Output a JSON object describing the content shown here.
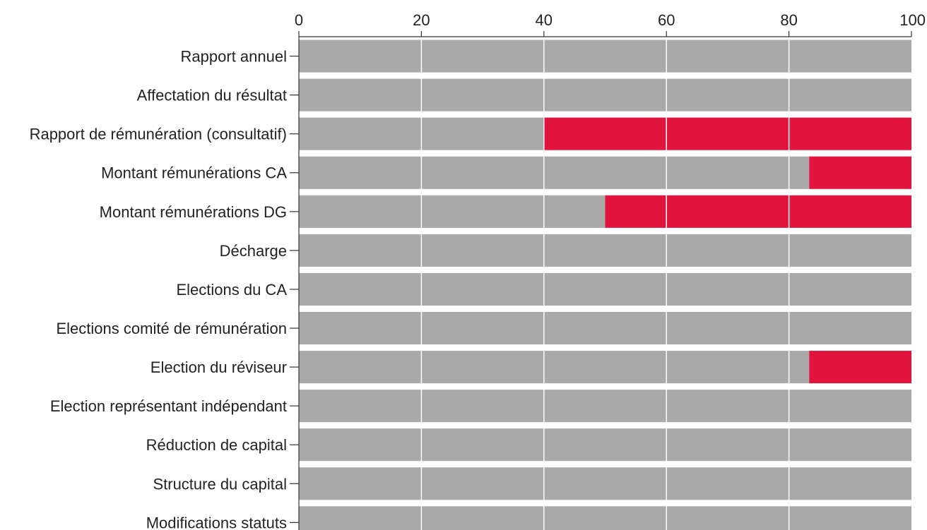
{
  "chart_data": {
    "type": "bar",
    "orientation": "horizontal",
    "stacked": true,
    "title": "",
    "xlabel": "",
    "ylabel": "",
    "xlim": [
      0,
      100
    ],
    "x_ticks": [
      0,
      20,
      40,
      60,
      80,
      100
    ],
    "x_axis_position": "top",
    "grid": true,
    "legend": "none",
    "categories": [
      "Rapport annuel",
      "Affectation du résultat",
      "Rapport de rémunération (consultatif)",
      "Montant rémunérations CA",
      "Montant rémunérations DG",
      "Décharge",
      "Elections du CA",
      "Elections comité de rémunération",
      "Election du réviseur",
      "Election représentant indépendant",
      "Réduction de capital",
      "Structure du capital",
      "Modifications statuts"
    ],
    "series": [
      {
        "color": "#a9a9a9",
        "values": [
          100,
          100,
          40,
          83.3,
          50,
          100,
          100,
          100,
          83.3,
          100,
          100,
          100,
          100
        ]
      },
      {
        "color": "#e0143c",
        "values": [
          0,
          0,
          60,
          16.7,
          50,
          0,
          0,
          0,
          16.7,
          0,
          0,
          0,
          0
        ]
      }
    ]
  }
}
